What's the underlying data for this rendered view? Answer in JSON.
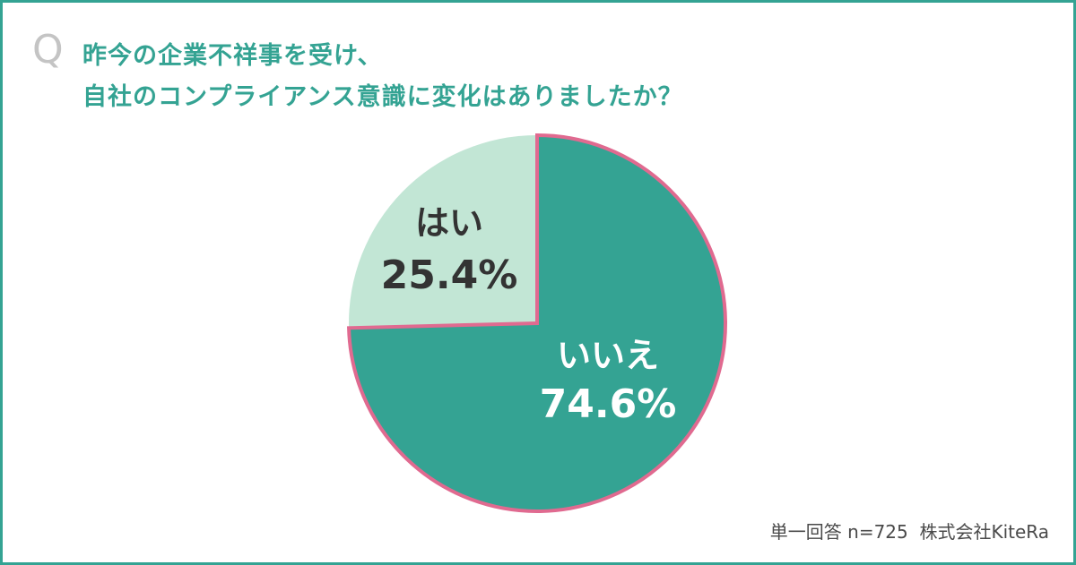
{
  "question": {
    "mark": "Q",
    "line1": "昨今の企業不祥事を受け、",
    "line2": "自社のコンプライアンス意識に変化はありましたか？"
  },
  "chart_data": {
    "type": "pie",
    "categories": [
      "はい",
      "いいえ"
    ],
    "values": [
      25.4,
      74.6
    ],
    "value_labels": [
      "25.4%",
      "74.6%"
    ],
    "colors": [
      "#c2e6d5",
      "#34a393"
    ],
    "outline_color": "#e06a90",
    "label_colors": [
      "#333333",
      "#ffffff"
    ],
    "start_angle_deg": 0,
    "direction": "counterclockwise-from-top"
  },
  "footer": {
    "text": "単一回答 n=725  株式会社KiteRa"
  },
  "colors": {
    "frame": "#34a393",
    "accent": "#34a393",
    "q_mark": "#c4c4c4"
  }
}
